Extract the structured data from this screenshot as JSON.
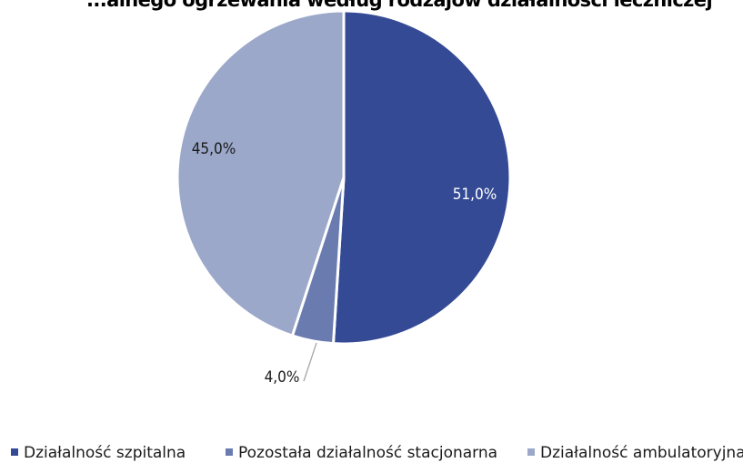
{
  "chart_data": {
    "type": "pie",
    "title": "...alnego ogrzewania według rodzajów działalności leczniczej",
    "slices": [
      {
        "label": "Działalność szpitalna",
        "value": 51.0,
        "display": "51,0%",
        "color": "#344a94"
      },
      {
        "label": "Pozostała działalność stacjonarna",
        "value": 4.0,
        "display": "4,0%",
        "color": "#6a7bb0"
      },
      {
        "label": "Działalność ambulatoryjna",
        "value": 45.0,
        "display": "45,0%",
        "color": "#9ba8ca"
      }
    ],
    "legend_position": "bottom"
  }
}
